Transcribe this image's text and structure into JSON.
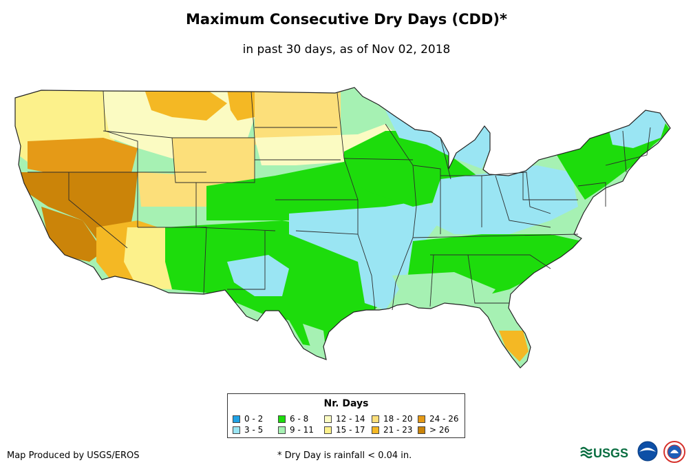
{
  "title": "Maximum Consecutive Dry Days (CDD)*",
  "subtitle": "in past 30 days, as of Nov 02, 2018",
  "legend": {
    "title": "Nr. Days",
    "items": [
      {
        "label": "0 - 2",
        "color": "#1fa2e6"
      },
      {
        "label": "3 - 5",
        "color": "#9ae5f3"
      },
      {
        "label": "6 - 8",
        "color": "#1ddc0c"
      },
      {
        "label": "9 - 11",
        "color": "#a6f1b3"
      },
      {
        "label": "12 - 14",
        "color": "#fbfbc2"
      },
      {
        "label": "15 - 17",
        "color": "#fcf18b"
      },
      {
        "label": "18 - 20",
        "color": "#fcdf7a"
      },
      {
        "label": "21 - 23",
        "color": "#f4b824"
      },
      {
        "label": "24 - 26",
        "color": "#e59a17"
      },
      {
        "label": "> 26",
        "color": "#cb8409"
      }
    ]
  },
  "credit": "Map Produced by USGS/EROS",
  "footnote": "* Dry Day is rainfall < 0.04 in.",
  "logos": {
    "usgs": {
      "name": "usgs-logo",
      "text": "USGS",
      "color": "#0a6e41"
    },
    "noaa": {
      "name": "noaa-logo",
      "color": "#0d4fa6"
    },
    "nws": {
      "name": "nws-logo",
      "color": "#d6312b"
    }
  },
  "map": {
    "land_color": "#a6f1b3",
    "border_color": "#2b2b2b"
  }
}
